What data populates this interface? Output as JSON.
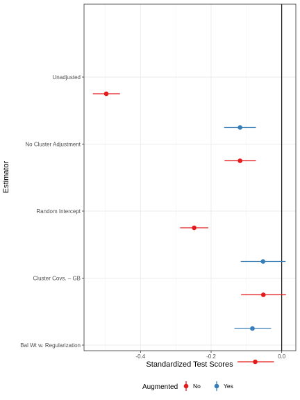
{
  "chart_data": {
    "type": "dot-and-whisker",
    "xlabel": "Standardized Test Scores",
    "ylabel": "Estimator",
    "xlim": [
      -0.56,
      0.04
    ],
    "x_ticks": [
      -0.4,
      -0.2,
      0.0
    ],
    "x_tick_labels": [
      "-0.4",
      "-0.2",
      "0.0"
    ],
    "reference_line_x": 0.0,
    "grid": true,
    "categories": [
      "Unadjusted",
      "No Cluster Adjustment",
      "Random Intercept",
      "Cluster Covs. – GB",
      "Bal Wt w. Regularization"
    ],
    "legend": {
      "title": "Augmented",
      "position": "bottom",
      "entries": [
        {
          "label": "No",
          "color": "#e41a1c"
        },
        {
          "label": "Yes",
          "color": "#377eb8"
        }
      ]
    },
    "series": [
      {
        "name": "No",
        "color": "#e41a1c",
        "points": [
          {
            "category": "Unadjusted",
            "estimate": -0.497,
            "low": -0.535,
            "high": -0.458
          },
          {
            "category": "No Cluster Adjustment",
            "estimate": -0.118,
            "low": -0.162,
            "high": -0.073
          },
          {
            "category": "Random Intercept",
            "estimate": -0.248,
            "low": -0.288,
            "high": -0.208
          },
          {
            "category": "Cluster Covs. – GB",
            "estimate": -0.052,
            "low": -0.115,
            "high": 0.012
          },
          {
            "category": "Bal Wt w. Regularization",
            "estimate": -0.075,
            "low": -0.125,
            "high": -0.022
          }
        ]
      },
      {
        "name": "Yes",
        "color": "#377eb8",
        "points": [
          {
            "category": "No Cluster Adjustment",
            "estimate": -0.118,
            "low": -0.163,
            "high": -0.073
          },
          {
            "category": "Cluster Covs. – GB",
            "estimate": -0.053,
            "low": -0.116,
            "high": 0.011
          },
          {
            "category": "Bal Wt w. Regularization",
            "estimate": -0.083,
            "low": -0.134,
            "high": -0.03
          }
        ]
      }
    ]
  }
}
